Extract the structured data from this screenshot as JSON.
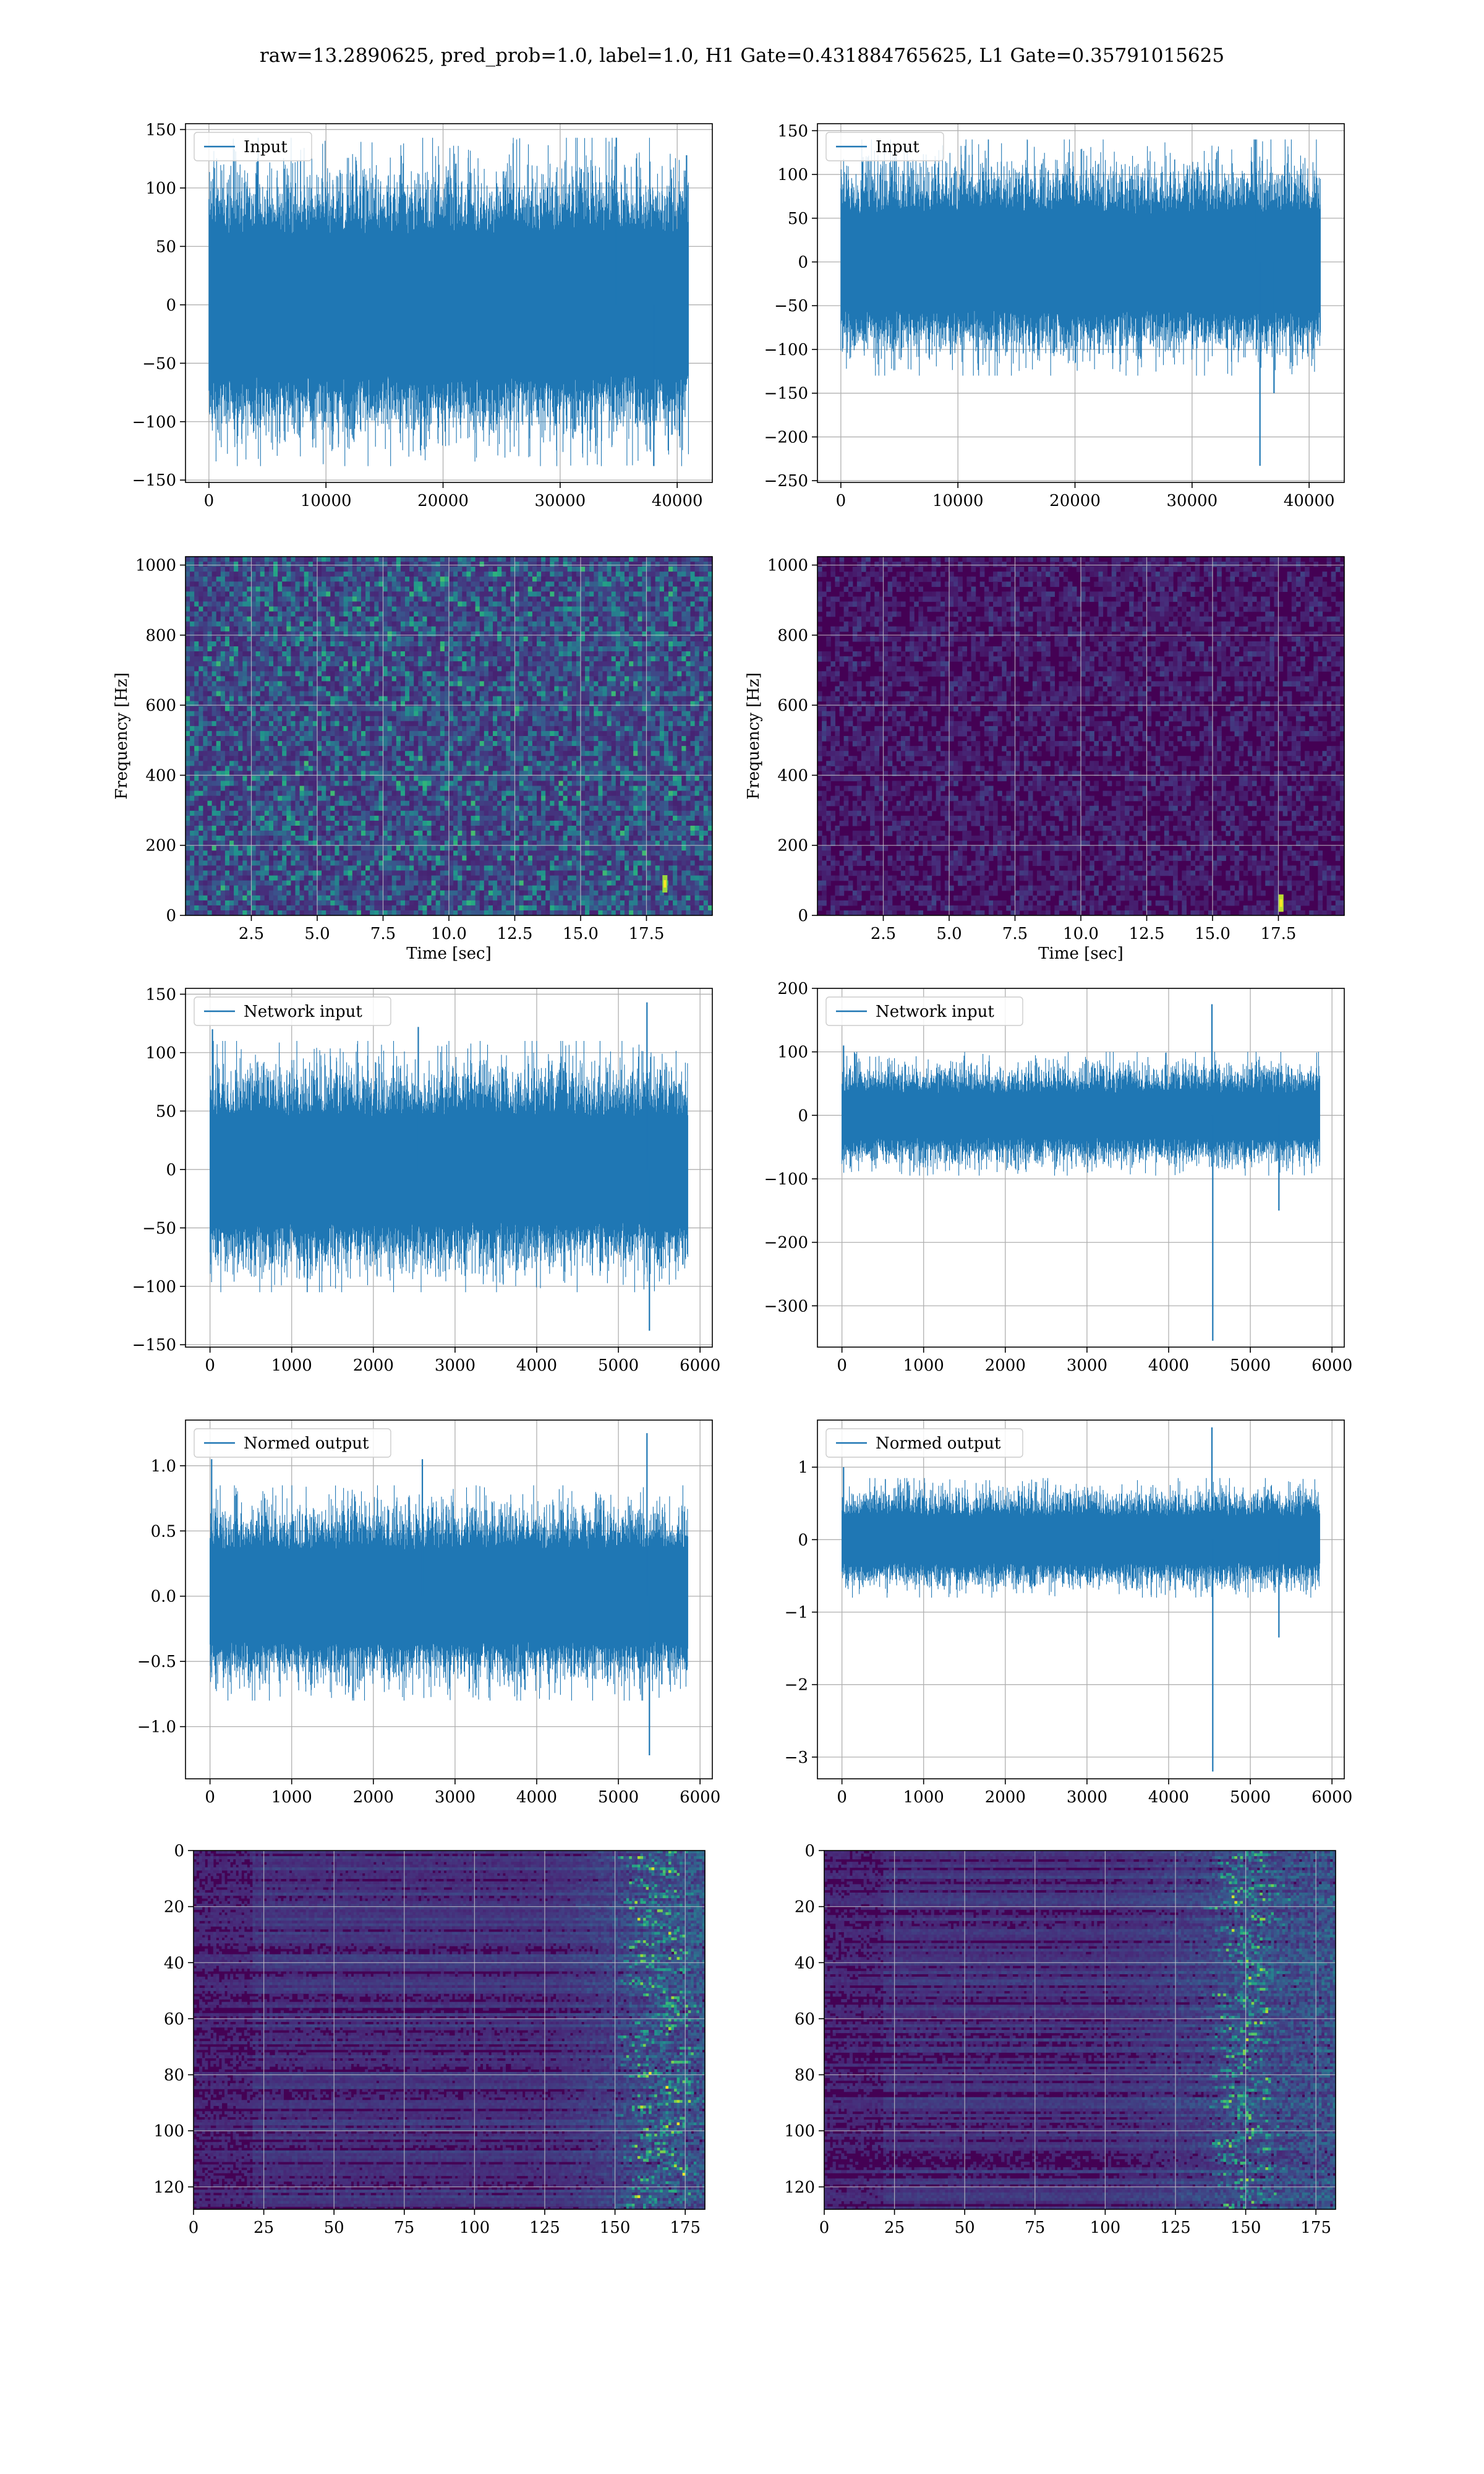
{
  "suptitle": "raw=13.2890625, pred_prob=1.0, label=1.0, H1 Gate=0.431884765625, L1 Gate=0.35791015625",
  "colors": {
    "line": "#1f77b4",
    "grid": "#b0b0b0",
    "viridis_low": "#440154",
    "viridis_mid": "#21918c",
    "viridis_high": "#fde725"
  },
  "chart_data": [
    {
      "id": "r1c1",
      "type": "line",
      "legend": "Input",
      "legend_loc": "upper-left",
      "xlim": [
        -2000,
        43000
      ],
      "ylim": [
        -152,
        155
      ],
      "xticks": [
        0,
        10000,
        20000,
        30000,
        40000
      ],
      "xtick_labels": [
        "0",
        "10000",
        "20000",
        "30000",
        "40000"
      ],
      "yticks": [
        -150,
        -100,
        -50,
        0,
        50,
        100,
        150
      ],
      "ytick_labels": [
        "−150",
        "−100",
        "−50",
        "0",
        "50",
        "100",
        "150"
      ],
      "grid": true,
      "signal": {
        "x_start": 0,
        "x_end": 40960,
        "body_low": -60,
        "body_high": 60,
        "peak_low": -138,
        "peak_high": 143
      },
      "spikes": [
        {
          "x": 34800,
          "y": 143
        },
        {
          "x": 38000,
          "y": -138
        },
        {
          "x": 40800,
          "y": 128
        }
      ]
    },
    {
      "id": "r1c2",
      "type": "line",
      "legend": "Input",
      "legend_loc": "upper-left",
      "xlim": [
        -2000,
        43000
      ],
      "ylim": [
        -252,
        158
      ],
      "xticks": [
        0,
        10000,
        20000,
        30000,
        40000
      ],
      "xtick_labels": [
        "0",
        "10000",
        "20000",
        "30000",
        "40000"
      ],
      "yticks": [
        -250,
        -200,
        -150,
        -100,
        -50,
        0,
        50,
        100,
        150
      ],
      "ytick_labels": [
        "−250",
        "−200",
        "−150",
        "−100",
        "−50",
        "0",
        "50",
        "100",
        "150"
      ],
      "grid": true,
      "signal": {
        "x_start": 0,
        "x_end": 40960,
        "body_low": -55,
        "body_high": 55,
        "peak_low": -130,
        "peak_high": 140
      },
      "spikes": [
        {
          "x": 35800,
          "y": -233
        },
        {
          "x": 35400,
          "y": 140
        },
        {
          "x": 37000,
          "y": -150
        }
      ]
    },
    {
      "id": "r2c1",
      "type": "heatmap",
      "colormap": "viridis",
      "intensity": 0.28,
      "xlim": [
        0,
        20
      ],
      "ylim": [
        0,
        1024
      ],
      "xticks": [
        2.5,
        5.0,
        7.5,
        10.0,
        12.5,
        15.0,
        17.5
      ],
      "xtick_labels": [
        "2.5",
        "5.0",
        "7.5",
        "10.0",
        "12.5",
        "15.0",
        "17.5"
      ],
      "yticks": [
        0,
        200,
        400,
        600,
        800,
        1000
      ],
      "ytick_labels": [
        "0",
        "200",
        "400",
        "600",
        "800",
        "1000"
      ],
      "xlabel": "Time [sec]",
      "ylabel": "Frequency [Hz]",
      "grid": true,
      "hotspots": [
        {
          "x": 18.2,
          "y": 90,
          "v": 0.85
        }
      ]
    },
    {
      "id": "r2c2",
      "type": "heatmap",
      "colormap": "viridis",
      "intensity": 0.09,
      "xlim": [
        0,
        20
      ],
      "ylim": [
        0,
        1024
      ],
      "xticks": [
        2.5,
        5.0,
        7.5,
        10.0,
        12.5,
        15.0,
        17.5
      ],
      "xtick_labels": [
        "2.5",
        "5.0",
        "7.5",
        "10.0",
        "12.5",
        "15.0",
        "17.5"
      ],
      "yticks": [
        0,
        200,
        400,
        600,
        800,
        1000
      ],
      "ytick_labels": [
        "0",
        "200",
        "400",
        "600",
        "800",
        "1000"
      ],
      "xlabel": "Time [sec]",
      "ylabel": "Frequency [Hz]",
      "grid": true,
      "hotspots": [
        {
          "x": 17.6,
          "y": 35,
          "v": 0.9
        }
      ]
    },
    {
      "id": "r3c1",
      "type": "line",
      "legend": "Network input",
      "legend_loc": "upper-left",
      "xlim": [
        -300,
        6150
      ],
      "ylim": [
        -152,
        155
      ],
      "xticks": [
        0,
        1000,
        2000,
        3000,
        4000,
        5000,
        6000
      ],
      "xtick_labels": [
        "0",
        "1000",
        "2000",
        "3000",
        "4000",
        "5000",
        "6000"
      ],
      "yticks": [
        -150,
        -100,
        -50,
        0,
        50,
        100,
        150
      ],
      "ytick_labels": [
        "−150",
        "−100",
        "−50",
        "0",
        "50",
        "100",
        "150"
      ],
      "grid": true,
      "signal": {
        "x_start": 0,
        "x_end": 5850,
        "body_low": -45,
        "body_high": 45,
        "peak_low": -105,
        "peak_high": 110
      },
      "spikes": [
        {
          "x": 5350,
          "y": 143
        },
        {
          "x": 5380,
          "y": -138
        },
        {
          "x": 30,
          "y": 120
        },
        {
          "x": 2550,
          "y": 122
        }
      ]
    },
    {
      "id": "r3c2",
      "type": "line",
      "legend": "Network input",
      "legend_loc": "upper-left",
      "xlim": [
        -300,
        6150
      ],
      "ylim": [
        -365,
        200
      ],
      "xticks": [
        0,
        1000,
        2000,
        3000,
        4000,
        5000,
        6000
      ],
      "xtick_labels": [
        "0",
        "1000",
        "2000",
        "3000",
        "4000",
        "5000",
        "6000"
      ],
      "yticks": [
        -300,
        -200,
        -100,
        0,
        100,
        200
      ],
      "ytick_labels": [
        "−300",
        "−200",
        "−100",
        "0",
        "100",
        "200"
      ],
      "grid": true,
      "signal": {
        "x_start": 0,
        "x_end": 5850,
        "body_low": -35,
        "body_high": 35,
        "peak_low": -95,
        "peak_high": 100
      },
      "spikes": [
        {
          "x": 4530,
          "y": 175
        },
        {
          "x": 4540,
          "y": -355
        },
        {
          "x": 5350,
          "y": -150
        },
        {
          "x": 20,
          "y": 110
        }
      ]
    },
    {
      "id": "r4c1",
      "type": "line",
      "legend": "Normed output",
      "legend_loc": "upper-left",
      "xlim": [
        -300,
        6150
      ],
      "ylim": [
        -1.4,
        1.35
      ],
      "xticks": [
        0,
        1000,
        2000,
        3000,
        4000,
        5000,
        6000
      ],
      "xtick_labels": [
        "0",
        "1000",
        "2000",
        "3000",
        "4000",
        "5000",
        "6000"
      ],
      "yticks": [
        -1.0,
        -0.5,
        0.0,
        0.5,
        1.0
      ],
      "ytick_labels": [
        "−1.0",
        "−0.5",
        "0.0",
        "0.5",
        "1.0"
      ],
      "grid": true,
      "signal": {
        "x_start": 0,
        "x_end": 5850,
        "body_low": -0.35,
        "body_high": 0.35,
        "peak_low": -0.8,
        "peak_high": 0.85
      },
      "spikes": [
        {
          "x": 5350,
          "y": 1.25
        },
        {
          "x": 5380,
          "y": -1.22
        },
        {
          "x": 20,
          "y": 1.05
        },
        {
          "x": 2600,
          "y": 1.05
        }
      ]
    },
    {
      "id": "r4c2",
      "type": "line",
      "legend": "Normed output",
      "legend_loc": "upper-left",
      "xlim": [
        -300,
        6150
      ],
      "ylim": [
        -3.3,
        1.65
      ],
      "xticks": [
        0,
        1000,
        2000,
        3000,
        4000,
        5000,
        6000
      ],
      "xtick_labels": [
        "0",
        "1000",
        "2000",
        "3000",
        "4000",
        "5000",
        "6000"
      ],
      "yticks": [
        -3,
        -2,
        -1,
        0,
        1
      ],
      "ytick_labels": [
        "−3",
        "−2",
        "−1",
        "0",
        "1"
      ],
      "grid": true,
      "signal": {
        "x_start": 0,
        "x_end": 5850,
        "body_low": -0.32,
        "body_high": 0.32,
        "peak_low": -0.8,
        "peak_high": 0.85
      },
      "spikes": [
        {
          "x": 4530,
          "y": 1.55
        },
        {
          "x": 4540,
          "y": -3.2
        },
        {
          "x": 5350,
          "y": -1.35
        },
        {
          "x": 20,
          "y": 1.0
        }
      ]
    },
    {
      "id": "r5c1",
      "type": "heatmap",
      "colormap": "viridis",
      "intensity": 0.12,
      "xlim": [
        0,
        182
      ],
      "ylim": [
        128,
        0
      ],
      "xticks": [
        0,
        25,
        50,
        75,
        100,
        125,
        150,
        175
      ],
      "xtick_labels": [
        "0",
        "25",
        "50",
        "75",
        "100",
        "125",
        "150",
        "175"
      ],
      "yticks": [
        0,
        20,
        40,
        60,
        80,
        100,
        120
      ],
      "ytick_labels": [
        "0",
        "20",
        "40",
        "60",
        "80",
        "100",
        "120"
      ],
      "grid": true,
      "activation": {
        "start_col": 125,
        "peak_col": 165,
        "strength": 0.75
      }
    },
    {
      "id": "r5c2",
      "type": "heatmap",
      "colormap": "viridis",
      "intensity": 0.12,
      "xlim": [
        0,
        182
      ],
      "ylim": [
        128,
        0
      ],
      "xticks": [
        0,
        25,
        50,
        75,
        100,
        125,
        150,
        175
      ],
      "xtick_labels": [
        "0",
        "25",
        "50",
        "75",
        "100",
        "125",
        "150",
        "175"
      ],
      "yticks": [
        0,
        20,
        40,
        60,
        80,
        100,
        120
      ],
      "ytick_labels": [
        "0",
        "20",
        "40",
        "60",
        "80",
        "100",
        "120"
      ],
      "grid": true,
      "activation": {
        "start_col": 100,
        "peak_col": 150,
        "strength": 0.7
      }
    }
  ]
}
